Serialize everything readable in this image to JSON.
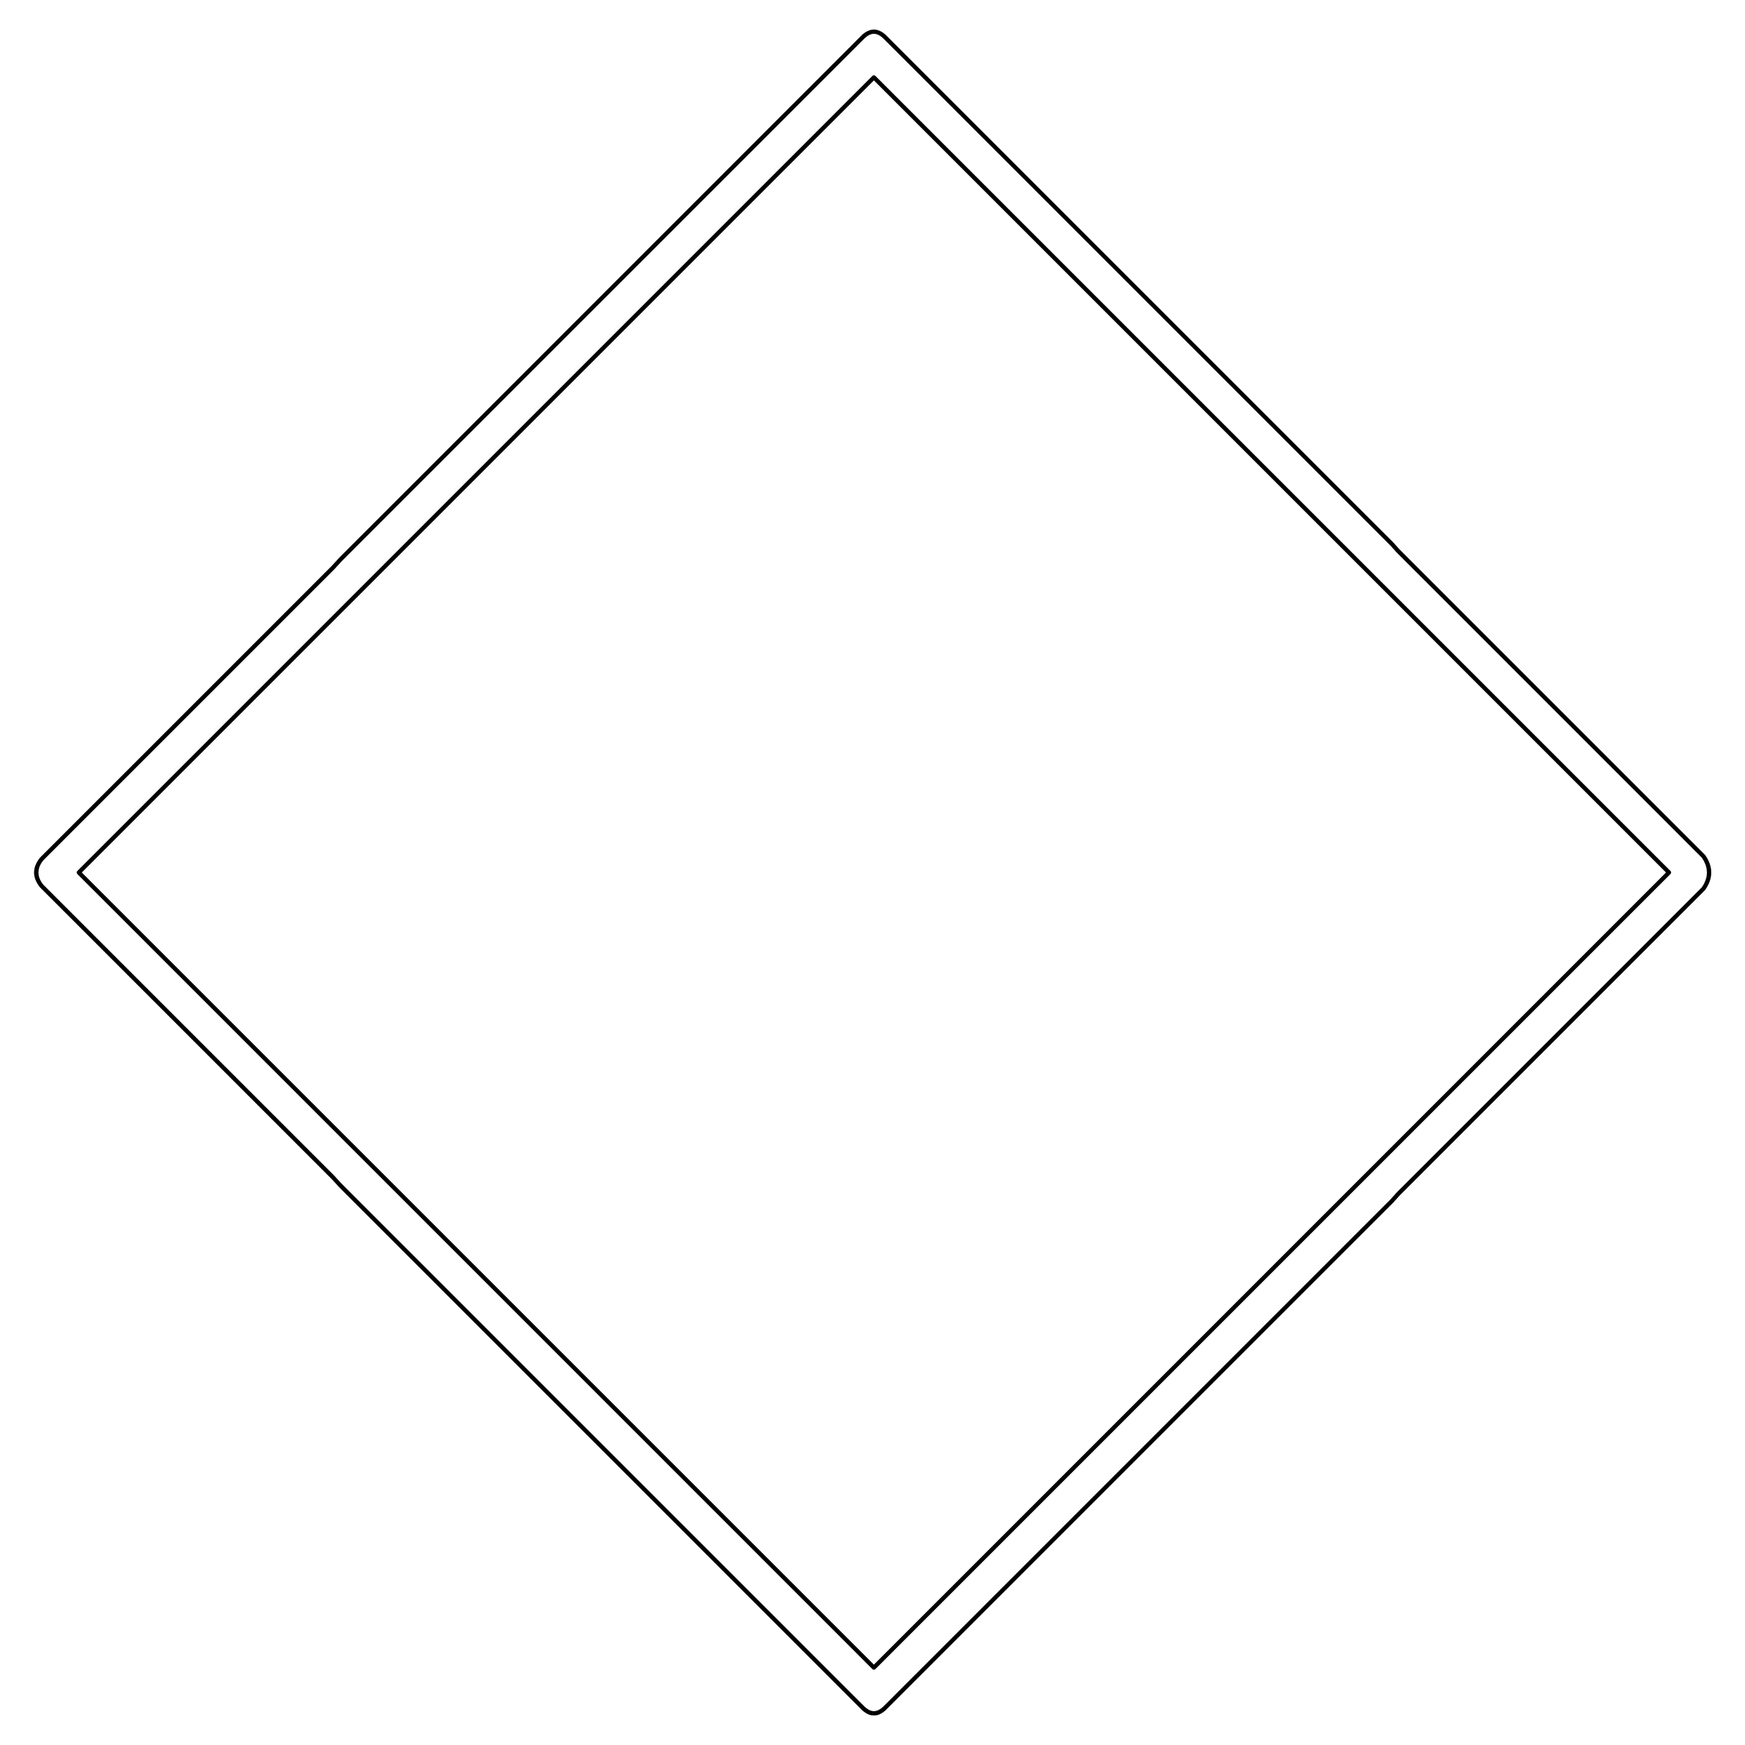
{
  "figure": {
    "shape": "diamond-outline-with-inner-diamond",
    "stroke_color": "#000000",
    "background_color": "#ffffff"
  }
}
